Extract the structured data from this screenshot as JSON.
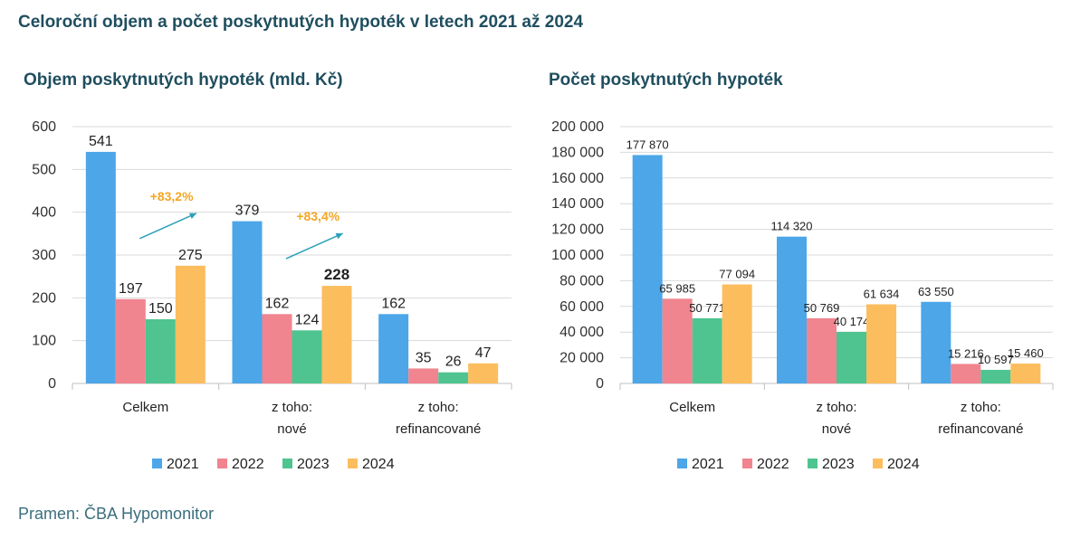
{
  "page": {
    "title": "Celoroční objem a počet poskytnutých hypoték v letech 2021 až 2024",
    "source": "Pramen: ČBA Hypomonitor"
  },
  "colors": {
    "2021": "#4da6e8",
    "2022": "#f0848f",
    "2023": "#4fc490",
    "2024": "#fcbd5e",
    "arrow": "#2aa0b8",
    "annotation": "#f5a623",
    "title": "#1f4e5f"
  },
  "chart_data": [
    {
      "type": "bar",
      "title": "Objem poskytnutých hypoték (mld. Kč)",
      "categories": [
        "Celkem",
        "z toho:\nnové",
        "z toho:\nrefinancované"
      ],
      "series": [
        {
          "name": "2021",
          "values": [
            541,
            379,
            162
          ],
          "labels": [
            "541",
            "379",
            "162"
          ]
        },
        {
          "name": "2022",
          "values": [
            197,
            162,
            35
          ],
          "labels": [
            "197",
            "162",
            "35"
          ]
        },
        {
          "name": "2023",
          "values": [
            150,
            124,
            26
          ],
          "labels": [
            "150",
            "124",
            "26"
          ]
        },
        {
          "name": "2024",
          "values": [
            275,
            228,
            47
          ],
          "labels": [
            "275",
            "228",
            "47"
          ]
        }
      ],
      "ylim": [
        0,
        600
      ],
      "yticks": [
        "0",
        "100",
        "200",
        "300",
        "400",
        "500",
        "600"
      ],
      "annotations": [
        {
          "text": "+83,2%",
          "category": 0
        },
        {
          "text": "+83,4%",
          "category": 1
        }
      ],
      "bold_labels": [
        {
          "series": 3,
          "category": 1
        }
      ],
      "grid": true,
      "legend": "bottom"
    },
    {
      "type": "bar",
      "title": "Počet poskytnutých hypoték",
      "categories": [
        "Celkem",
        "z toho:\nnové",
        "z toho:\nrefinancované"
      ],
      "series": [
        {
          "name": "2021",
          "values": [
            177870,
            114320,
            63550
          ],
          "labels": [
            "177 870",
            "114 320",
            "63 550"
          ]
        },
        {
          "name": "2022",
          "values": [
            65985,
            50769,
            15216
          ],
          "labels": [
            "65 985",
            "50 769",
            "15 216"
          ]
        },
        {
          "name": "2023",
          "values": [
            50771,
            40174,
            10597
          ],
          "labels": [
            "50 771",
            "40 174",
            "10 597"
          ]
        },
        {
          "name": "2024",
          "values": [
            77094,
            61634,
            15460
          ],
          "labels": [
            "77 094",
            "61 634",
            "15 460"
          ]
        }
      ],
      "ylim": [
        0,
        200000
      ],
      "yticks": [
        "0",
        "20 000",
        "40 000",
        "60 000",
        "80 000",
        "100 000",
        "120 000",
        "140 000",
        "160 000",
        "180 000",
        "200 000"
      ],
      "grid": true,
      "legend": "bottom"
    }
  ]
}
